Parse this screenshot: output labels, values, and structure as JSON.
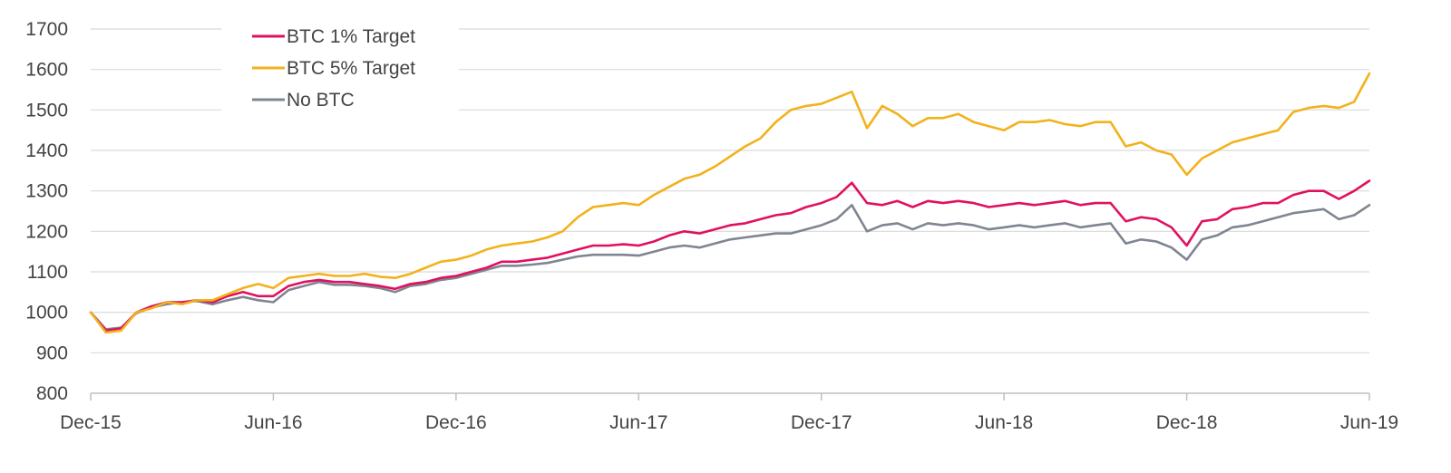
{
  "chart_data": {
    "type": "line",
    "title": "",
    "xlabel": "",
    "ylabel": "",
    "ylim": [
      800,
      1700
    ],
    "yticks": [
      800,
      900,
      1000,
      1100,
      1200,
      1300,
      1400,
      1500,
      1600,
      1700
    ],
    "xticks": [
      {
        "t": 0,
        "label": "Dec-15"
      },
      {
        "t": 6,
        "label": "Jun-16"
      },
      {
        "t": 12,
        "label": "Dec-16"
      },
      {
        "t": 18,
        "label": "Jun-17"
      },
      {
        "t": 24,
        "label": "Dec-17"
      },
      {
        "t": 30,
        "label": "Jun-18"
      },
      {
        "t": 36,
        "label": "Dec-18"
      },
      {
        "t": 42,
        "label": "Jun-19"
      }
    ],
    "xlim": [
      0,
      42
    ],
    "grid": true,
    "legend_position": "top-left",
    "x": [
      0,
      0.5,
      1,
      1.5,
      2,
      2.5,
      3,
      3.5,
      4,
      4.5,
      5,
      5.5,
      6,
      6.5,
      7,
      7.5,
      8,
      8.5,
      9,
      9.5,
      10,
      10.5,
      11,
      11.5,
      12,
      12.5,
      13,
      13.5,
      14,
      14.5,
      15,
      15.5,
      16,
      16.5,
      17,
      17.5,
      18,
      18.5,
      19,
      19.5,
      20,
      20.5,
      21,
      21.5,
      22,
      22.5,
      23,
      23.5,
      24,
      24.5,
      25,
      25.5,
      26,
      26.5,
      27,
      27.5,
      28,
      28.5,
      29,
      29.5,
      30,
      30.5,
      31,
      31.5,
      32,
      32.5,
      33,
      33.5,
      34,
      34.5,
      35,
      35.5,
      36,
      36.5,
      37,
      37.5,
      38,
      38.5,
      39,
      39.5,
      40,
      40.5,
      41,
      41.5,
      42
    ],
    "series": [
      {
        "name": "BTC 1% Target",
        "color": "#e0115f",
        "values": [
          1000,
          955,
          960,
          1000,
          1015,
          1025,
          1025,
          1030,
          1025,
          1040,
          1050,
          1040,
          1040,
          1065,
          1075,
          1080,
          1075,
          1075,
          1070,
          1065,
          1058,
          1070,
          1075,
          1085,
          1090,
          1100,
          1110,
          1125,
          1125,
          1130,
          1135,
          1145,
          1155,
          1165,
          1165,
          1168,
          1165,
          1175,
          1190,
          1200,
          1195,
          1205,
          1215,
          1220,
          1230,
          1240,
          1245,
          1260,
          1270,
          1285,
          1320,
          1270,
          1265,
          1275,
          1260,
          1275,
          1270,
          1275,
          1270,
          1260,
          1265,
          1270,
          1265,
          1270,
          1275,
          1265,
          1270,
          1270,
          1225,
          1235,
          1230,
          1210,
          1165,
          1225,
          1230,
          1255,
          1260,
          1270,
          1270,
          1290,
          1300,
          1300,
          1280,
          1300,
          1325
        ]
      },
      {
        "name": "BTC 5% Target",
        "color": "#f2b21c",
        "values": [
          1000,
          950,
          955,
          1000,
          1010,
          1025,
          1020,
          1030,
          1030,
          1045,
          1060,
          1070,
          1060,
          1085,
          1090,
          1095,
          1090,
          1090,
          1095,
          1088,
          1085,
          1095,
          1110,
          1125,
          1130,
          1140,
          1155,
          1165,
          1170,
          1175,
          1185,
          1200,
          1235,
          1260,
          1265,
          1270,
          1265,
          1290,
          1310,
          1330,
          1340,
          1360,
          1385,
          1410,
          1430,
          1470,
          1500,
          1510,
          1515,
          1530,
          1545,
          1455,
          1510,
          1490,
          1460,
          1480,
          1480,
          1490,
          1470,
          1460,
          1450,
          1470,
          1470,
          1475,
          1465,
          1460,
          1470,
          1470,
          1410,
          1420,
          1400,
          1390,
          1340,
          1380,
          1400,
          1420,
          1430,
          1440,
          1450,
          1495,
          1505,
          1510,
          1505,
          1520,
          1590
        ]
      },
      {
        "name": "No BTC",
        "color": "#7f8591",
        "values": [
          1000,
          958,
          962,
          998,
          1012,
          1020,
          1025,
          1028,
          1020,
          1030,
          1038,
          1030,
          1025,
          1055,
          1065,
          1075,
          1068,
          1068,
          1065,
          1060,
          1050,
          1065,
          1070,
          1080,
          1085,
          1095,
          1105,
          1115,
          1115,
          1118,
          1122,
          1130,
          1138,
          1142,
          1142,
          1142,
          1140,
          1150,
          1160,
          1165,
          1160,
          1170,
          1180,
          1185,
          1190,
          1195,
          1195,
          1205,
          1215,
          1230,
          1265,
          1200,
          1215,
          1220,
          1205,
          1220,
          1215,
          1220,
          1215,
          1205,
          1210,
          1215,
          1210,
          1215,
          1220,
          1210,
          1215,
          1220,
          1170,
          1180,
          1175,
          1160,
          1130,
          1180,
          1190,
          1210,
          1215,
          1225,
          1235,
          1245,
          1250,
          1255,
          1230,
          1240,
          1265
        ]
      }
    ]
  }
}
